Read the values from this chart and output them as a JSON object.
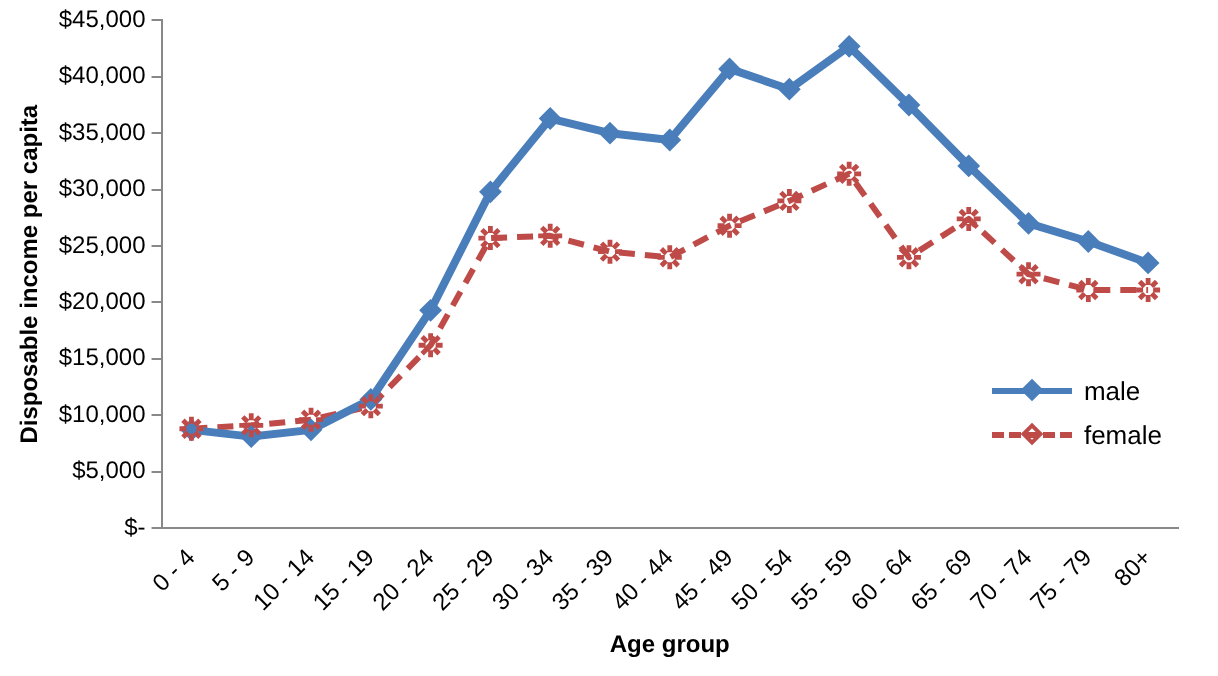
{
  "chart_data": {
    "type": "line",
    "xlabel": "Age group",
    "ylabel": "Disposable income per capita",
    "categories": [
      "0 - 4",
      "5 - 9",
      "10 - 14",
      "15 - 19",
      "20 - 24",
      "25 - 29",
      "30 - 34",
      "35 - 39",
      "40 - 44",
      "45 - 49",
      "50 - 54",
      "55 - 59",
      "60 - 64",
      "65 - 69",
      "70 - 74",
      "75 - 79",
      "80+"
    ],
    "series": [
      {
        "name": "male",
        "color": "#4a7ebb",
        "marker": "diamond",
        "line_style": "solid",
        "values": [
          8700,
          8100,
          8700,
          11400,
          19300,
          29800,
          36300,
          35000,
          34400,
          40700,
          38900,
          42700,
          37500,
          32100,
          27000,
          25400,
          23500
        ]
      },
      {
        "name": "female",
        "color": "#be4b48",
        "marker": "star",
        "line_style": "dashed",
        "values": [
          8800,
          9100,
          9600,
          10800,
          16200,
          25700,
          25900,
          24500,
          24000,
          26800,
          29000,
          31400,
          24000,
          27400,
          22500,
          21100,
          21100
        ]
      }
    ],
    "ylim": [
      0,
      45000
    ],
    "yticks": [
      {
        "value": 0,
        "label": "$-"
      },
      {
        "value": 5000,
        "label": "$5,000"
      },
      {
        "value": 10000,
        "label": "$10,000"
      },
      {
        "value": 15000,
        "label": "$15,000"
      },
      {
        "value": 20000,
        "label": "$20,000"
      },
      {
        "value": 25000,
        "label": "$25,000"
      },
      {
        "value": 30000,
        "label": "$30,000"
      },
      {
        "value": 35000,
        "label": "$35,000"
      },
      {
        "value": 40000,
        "label": "$40,000"
      },
      {
        "value": 45000,
        "label": "$45,000"
      }
    ],
    "grid": false,
    "legend": "bottom right"
  }
}
